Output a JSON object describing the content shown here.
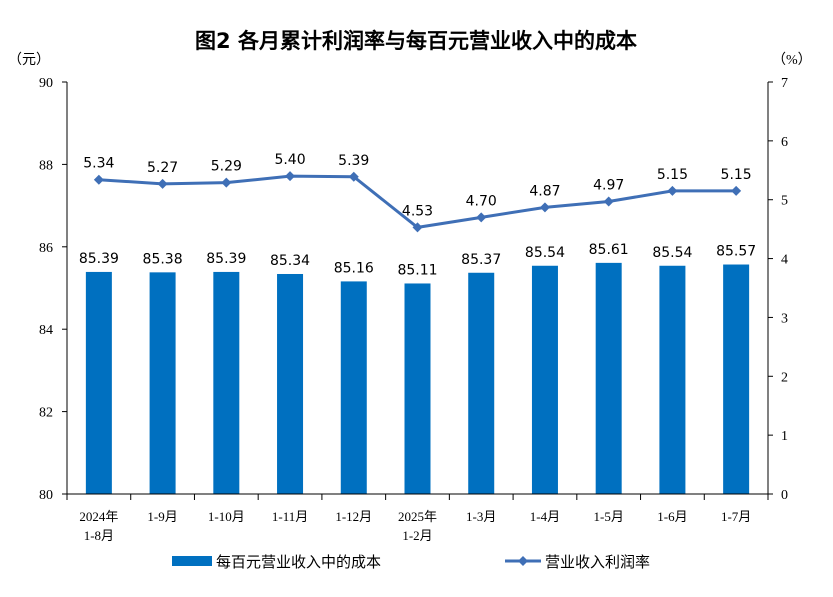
{
  "chart_data": {
    "type": "bar+line",
    "title": "图2  各月累计利润率与每百元营业收入中的成本",
    "left_unit": "（元）",
    "right_unit": "（%）",
    "categories": [
      [
        "2024年",
        "1-8月"
      ],
      [
        "1-9月"
      ],
      [
        "1-10月"
      ],
      [
        "1-11月"
      ],
      [
        "1-12月"
      ],
      [
        "2025年",
        "1-2月"
      ],
      [
        "1-3月"
      ],
      [
        "1-4月"
      ],
      [
        "1-5月"
      ],
      [
        "1-6月"
      ],
      [
        "1-7月"
      ]
    ],
    "left_axis": {
      "ylim": [
        80,
        90
      ],
      "ticks": [
        "80",
        "82",
        "84",
        "86",
        "88",
        "90"
      ]
    },
    "right_axis": {
      "ylim": [
        0,
        7
      ],
      "ticks": [
        "0",
        "1",
        "2",
        "3",
        "4",
        "5",
        "6",
        "7"
      ]
    },
    "grid": false,
    "legend_placement": "bottom",
    "series": [
      {
        "name": "每百元营业收入中的成本",
        "type": "bar",
        "axis": "left",
        "color": "#0070C0",
        "values": [
          85.39,
          85.38,
          85.39,
          85.34,
          85.16,
          85.11,
          85.37,
          85.54,
          85.61,
          85.54,
          85.57
        ],
        "labels": [
          "85.39",
          "85.38",
          "85.39",
          "85.34",
          "85.16",
          "85.11",
          "85.37",
          "85.54",
          "85.61",
          "85.54",
          "85.57"
        ]
      },
      {
        "name": "营业收入利润率",
        "type": "line",
        "axis": "right",
        "color": "#3F6FB6",
        "marker": "diamond",
        "values": [
          5.34,
          5.27,
          5.29,
          5.4,
          5.39,
          4.53,
          4.7,
          4.87,
          4.97,
          5.15,
          5.15
        ],
        "labels": [
          "5.34",
          "5.27",
          "5.29",
          "5.40",
          "5.39",
          "4.53",
          "4.70",
          "4.87",
          "4.97",
          "5.15",
          "5.15"
        ]
      }
    ]
  }
}
